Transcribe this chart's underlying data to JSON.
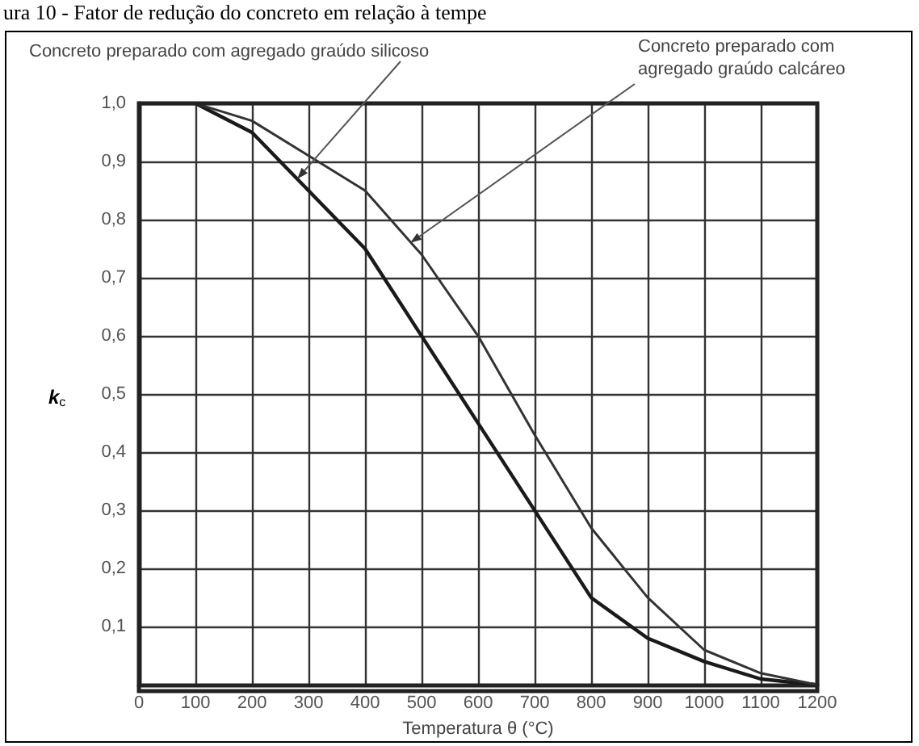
{
  "chart_data": {
    "type": "line",
    "title": "ura 10 - Fator de redução do concreto em relação à tempe",
    "xlabel": "Temperatura θ (°C)",
    "ylabel": "k$_{c}$",
    "x": [
      0,
      100,
      200,
      300,
      400,
      500,
      600,
      700,
      800,
      900,
      1000,
      1100,
      1200
    ],
    "series": [
      {
        "color": "#1a1a1a",
        "values": [
          1.0,
          1.0,
          0.95,
          0.85,
          0.75,
          0.6,
          0.45,
          0.3,
          0.15,
          0.08,
          0.04,
          0.01,
          0.0
        ]
      },
      {
        "color": "#333333",
        "values": [
          1.0,
          1.0,
          0.97,
          0.91,
          0.85,
          0.74,
          0.6,
          0.43,
          0.27,
          0.15,
          0.06,
          0.02,
          0.0
        ]
      }
    ],
    "xlim": [
      0,
      1200
    ],
    "xticks": [
      0,
      100,
      200,
      300,
      400,
      500,
      600,
      700,
      800,
      900,
      1000,
      1100,
      1200
    ],
    "ylim": [
      0,
      1
    ],
    "yticks": [
      {
        "value": 0,
        "label": null
      },
      {
        "value": 0.1,
        "label": "0,1"
      },
      {
        "value": 0.2,
        "label": "0,2"
      },
      {
        "value": 0.3,
        "label": "0,3"
      },
      {
        "value": 0.4,
        "label": "0,4"
      },
      {
        "value": 0.5,
        "label": "0,5"
      },
      {
        "value": 0.6,
        "label": "0,6"
      },
      {
        "value": 0.7,
        "label": "0,7"
      },
      {
        "value": 0.8,
        "label": "0,8"
      },
      {
        "value": 0.9,
        "label": "0,9"
      },
      {
        "value": 1.0,
        "label": "1,0"
      }
    ],
    "annotations": [
      {
        "text": "Concreto preparado com agregado graúdo silicoso",
        "x": 280,
        "y": 0.87
      },
      {
        "text": "Concreto preparado com\nagregado graúdo calcáreo",
        "x": 480,
        "y": 0.76
      }
    ],
    "grid": true,
    "marker": "none",
    "line_style": "solid"
  }
}
